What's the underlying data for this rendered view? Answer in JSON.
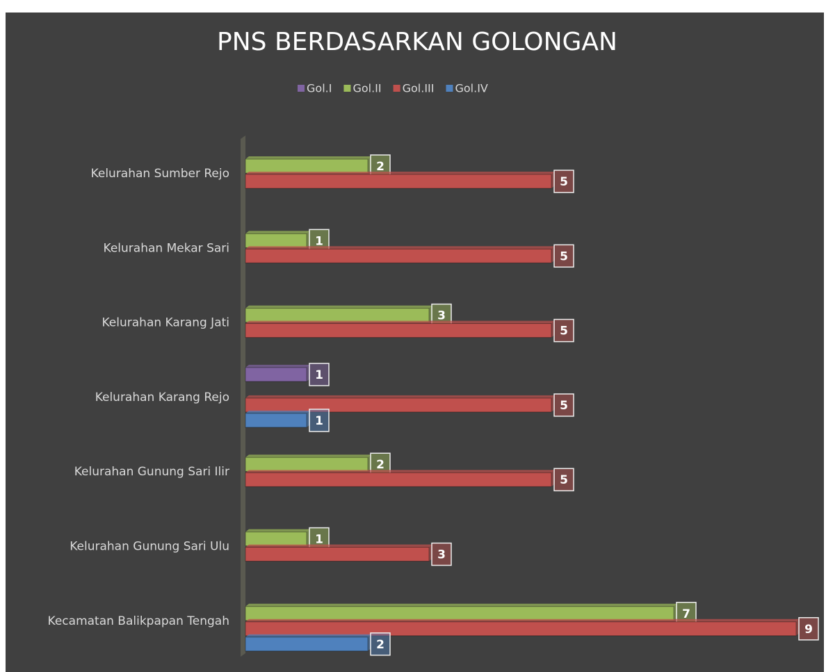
{
  "chart_data": {
    "type": "bar",
    "orientation": "horizontal",
    "title": "PNS BERDASARKAN GOLONGAN",
    "categories": [
      "Kelurahan Sumber Rejo",
      "Kelurahan Mekar Sari",
      "Kelurahan Karang Jati",
      "Kelurahan Karang Rejo",
      "Kelurahan Gunung Sari Ilir",
      "Kelurahan Gunung Sari Ulu",
      "Kecamatan Balikpapan Tengah"
    ],
    "series": [
      {
        "name": "Gol.I",
        "color": "#8064a2",
        "values": [
          null,
          null,
          null,
          1,
          null,
          null,
          null
        ]
      },
      {
        "name": "Gol.II",
        "color": "#9bbb59",
        "values": [
          2,
          1,
          3,
          null,
          2,
          1,
          7
        ]
      },
      {
        "name": "Gol.III",
        "color": "#c0504d",
        "values": [
          5,
          5,
          5,
          5,
          5,
          3,
          9
        ]
      },
      {
        "name": "Gol.IV",
        "color": "#4f81bd",
        "values": [
          null,
          null,
          null,
          1,
          null,
          null,
          2
        ]
      }
    ],
    "xlim": [
      0,
      9
    ],
    "legend": "top"
  }
}
